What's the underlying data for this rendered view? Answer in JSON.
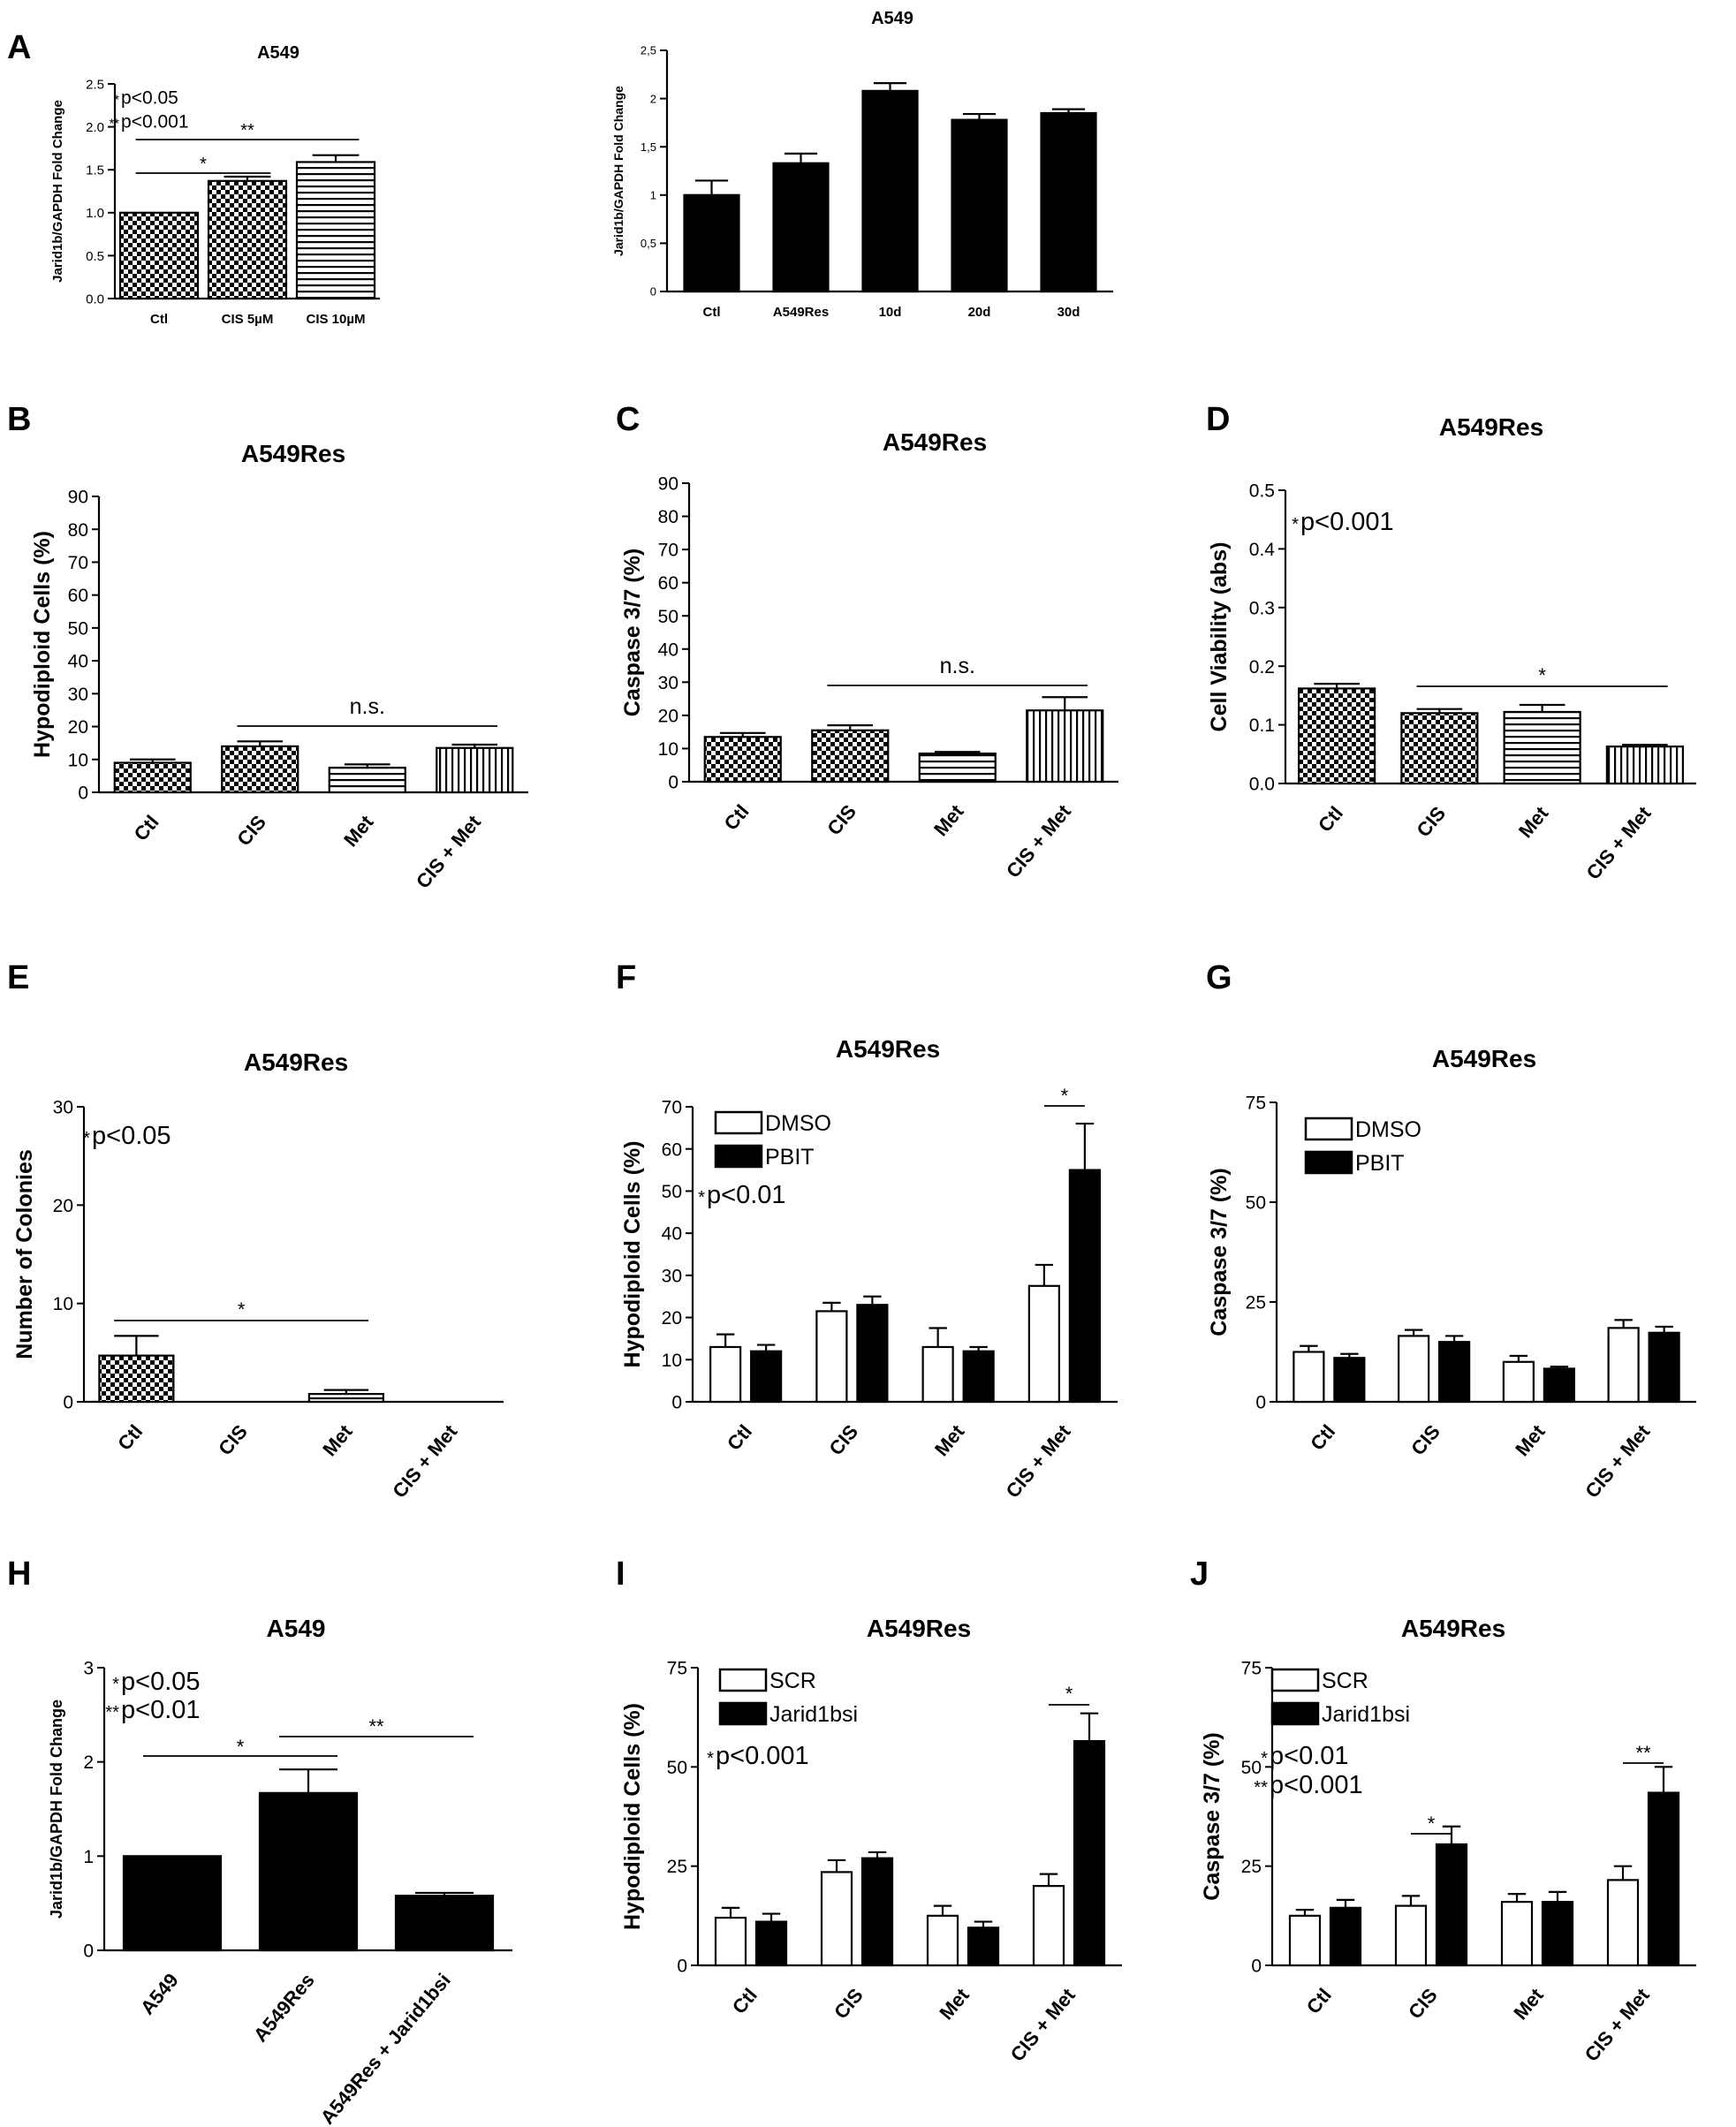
{
  "colors": {
    "ink": "#000000",
    "paper": "#ffffff"
  },
  "chart_data": [
    {
      "panel": "A",
      "title": "A549",
      "type": "bar",
      "ylabel": "Jarid1b/GAPDH Fold Change",
      "categories": [
        "Ctl",
        "CIS 5µM",
        "CIS 10µM"
      ],
      "yticks": [
        "0.0",
        "0.5",
        "1.0",
        "1.5",
        "2.0",
        "2.5"
      ],
      "ylim": [
        0,
        2.5
      ],
      "series": [
        {
          "values": [
            1.0,
            1.37,
            1.59
          ],
          "errors": [
            0,
            0.05,
            0.08
          ],
          "patterns": [
            "check",
            "check",
            "hstripe"
          ]
        }
      ],
      "notes": [
        "p<0.05",
        "p<0.001"
      ],
      "note_marks": [
        "*",
        "**"
      ],
      "sig": [
        {
          "from": 0,
          "to": 1,
          "label": "*"
        },
        {
          "from": 0,
          "to": 2,
          "label": "**"
        }
      ]
    },
    {
      "panel": "",
      "title": "A549",
      "type": "bar",
      "ylabel": "Jarid1b/GAPDH Fold Change",
      "categories": [
        "Ctl",
        "A549Res",
        "10d",
        "20d",
        "30d"
      ],
      "yticks": [
        "0",
        "0,5",
        "1",
        "1,5",
        "2",
        "2,5"
      ],
      "ylim": [
        0,
        2.5
      ],
      "series": [
        {
          "values": [
            1.0,
            1.33,
            2.08,
            1.78,
            1.85
          ],
          "errors": [
            0.15,
            0.1,
            0.08,
            0.06,
            0.04
          ],
          "patterns": [
            "black",
            "black",
            "black",
            "black",
            "black"
          ]
        }
      ]
    },
    {
      "panel": "B",
      "title": "A549Res",
      "type": "bar",
      "ylabel": "Hypodiploid Cells (%)",
      "categories": [
        "Ctl",
        "CIS",
        "Met",
        "CIS + Met"
      ],
      "yticks": [
        "0",
        "10",
        "20",
        "30",
        "40",
        "50",
        "60",
        "70",
        "80",
        "90"
      ],
      "ylim": [
        0,
        90
      ],
      "series": [
        {
          "values": [
            9,
            14,
            7.5,
            13.5
          ],
          "errors": [
            1,
            1.5,
            1,
            1
          ],
          "patterns": [
            "check",
            "check",
            "hstripe",
            "vstripe"
          ]
        }
      ],
      "sig": [
        {
          "from": 1,
          "to": 3,
          "label": "n.s."
        }
      ]
    },
    {
      "panel": "C",
      "title": "A549Res",
      "type": "bar",
      "ylabel": "Caspase 3/7 (%)",
      "categories": [
        "Ctl",
        "CIS",
        "Met",
        "CIS + Met"
      ],
      "yticks": [
        "0",
        "10",
        "20",
        "30",
        "40",
        "50",
        "60",
        "70",
        "80",
        "90"
      ],
      "ylim": [
        0,
        90
      ],
      "series": [
        {
          "values": [
            13.5,
            15.5,
            8.5,
            21.5
          ],
          "errors": [
            1.2,
            1.5,
            0.5,
            4
          ],
          "patterns": [
            "check",
            "check",
            "hstripe",
            "vstripe"
          ]
        }
      ],
      "sig": [
        {
          "from": 1,
          "to": 3,
          "label": "n.s."
        }
      ]
    },
    {
      "panel": "D",
      "title": "A549Res",
      "type": "bar",
      "ylabel": "Cell Viability (abs)",
      "categories": [
        "Ctl",
        "CIS",
        "Met",
        "CIS + Met"
      ],
      "yticks": [
        "0.0",
        "0.1",
        "0.2",
        "0.3",
        "0.4",
        "0.5"
      ],
      "ylim": [
        0,
        0.5
      ],
      "series": [
        {
          "values": [
            0.162,
            0.12,
            0.122,
            0.063
          ],
          "errors": [
            0.008,
            0.007,
            0.012,
            0.003
          ],
          "patterns": [
            "check",
            "check",
            "hstripe",
            "vstripe"
          ]
        }
      ],
      "notes": [
        "p<0.001"
      ],
      "note_marks": [
        "*"
      ],
      "sig": [
        {
          "from": 1,
          "to": 3,
          "label": "*"
        }
      ]
    },
    {
      "panel": "E",
      "title": "A549Res",
      "type": "bar",
      "ylabel": "Number of Colonies",
      "categories": [
        "Ctl",
        "CIS",
        "Met",
        "CIS + Met"
      ],
      "yticks": [
        "0",
        "10",
        "20",
        "30"
      ],
      "ylim": [
        0,
        30
      ],
      "series": [
        {
          "values": [
            4.7,
            0,
            0.8,
            0
          ],
          "errors": [
            2,
            0,
            0.4,
            0
          ],
          "patterns": [
            "check",
            "check",
            "hstripe",
            "vstripe"
          ]
        }
      ],
      "notes": [
        "p<0.05"
      ],
      "note_marks": [
        "*"
      ],
      "sig": [
        {
          "from": 0,
          "to": 2,
          "label": "*"
        }
      ]
    },
    {
      "panel": "F",
      "title": "A549Res",
      "type": "bar",
      "ylabel": "Hypodiploid Cells (%)",
      "categories": [
        "Ctl",
        "CIS",
        "Met",
        "CIS + Met"
      ],
      "yticks": [
        "0",
        "10",
        "20",
        "30",
        "40",
        "50",
        "60",
        "70"
      ],
      "ylim": [
        0,
        70
      ],
      "legend": [
        "DMSO",
        "PBIT"
      ],
      "series": [
        {
          "name": "DMSO",
          "values": [
            13,
            21.5,
            13,
            27.5
          ],
          "errors": [
            3,
            2,
            4.5,
            5
          ]
        },
        {
          "name": "PBIT",
          "values": [
            12,
            23,
            12,
            55
          ],
          "errors": [
            1.5,
            2,
            1,
            11
          ]
        }
      ],
      "notes": [
        "p<0.01"
      ],
      "note_marks": [
        "*"
      ],
      "sig": [
        {
          "group": 3,
          "label": "*"
        }
      ]
    },
    {
      "panel": "G",
      "title": "A549Res",
      "type": "bar",
      "ylabel": "Caspase 3/7 (%)",
      "categories": [
        "Ctl",
        "CIS",
        "Met",
        "CIS + Met"
      ],
      "yticks": [
        "0",
        "25",
        "50",
        "75"
      ],
      "ylim": [
        0,
        75
      ],
      "legend": [
        "DMSO",
        "PBIT"
      ],
      "series": [
        {
          "name": "DMSO",
          "values": [
            12.5,
            16.5,
            10,
            18.5
          ],
          "errors": [
            1.5,
            1.5,
            1.5,
            2
          ]
        },
        {
          "name": "PBIT",
          "values": [
            11,
            15,
            8.3,
            17.3
          ],
          "errors": [
            1,
            1.5,
            0.5,
            1.5
          ]
        }
      ]
    },
    {
      "panel": "H",
      "title": "A549",
      "type": "bar",
      "ylabel": "Jarid1b/GAPDH Fold Change",
      "categories": [
        "A549",
        "A549Res",
        "A549Res + Jarid1bsi"
      ],
      "yticks": [
        "0",
        "1",
        "2",
        "3"
      ],
      "ylim": [
        0,
        3
      ],
      "series": [
        {
          "values": [
            1.0,
            1.67,
            0.58
          ],
          "errors": [
            0,
            0.25,
            0.03
          ],
          "patterns": [
            "black",
            "black",
            "black"
          ]
        }
      ],
      "notes": [
        "p<0.05",
        "p<0.01"
      ],
      "note_marks": [
        "*",
        "**"
      ],
      "sig": [
        {
          "from": 0,
          "to": 1,
          "label": "*"
        },
        {
          "from": 1,
          "to": 2,
          "label": "**"
        }
      ]
    },
    {
      "panel": "I",
      "title": "A549Res",
      "type": "bar",
      "ylabel": "Hypodiploid Cells (%)",
      "categories": [
        "Ctl",
        "CIS",
        "Met",
        "CIS + Met"
      ],
      "yticks": [
        "0",
        "25",
        "50",
        "75"
      ],
      "ylim": [
        0,
        75
      ],
      "legend": [
        "SCR",
        "Jarid1bsi"
      ],
      "series": [
        {
          "name": "SCR",
          "values": [
            12,
            23.5,
            12.5,
            20
          ],
          "errors": [
            2.5,
            3,
            2.5,
            3
          ]
        },
        {
          "name": "Jarid1bsi",
          "values": [
            11,
            27,
            9.5,
            56.5
          ],
          "errors": [
            2,
            1.5,
            1.5,
            7
          ]
        }
      ],
      "notes": [
        "p<0.001"
      ],
      "note_marks": [
        "*"
      ],
      "sig": [
        {
          "group": 3,
          "label": "*"
        }
      ]
    },
    {
      "panel": "J",
      "title": "A549Res",
      "type": "bar",
      "ylabel": "Caspase 3/7 (%)",
      "categories": [
        "Ctl",
        "CIS",
        "Met",
        "CIS + Met"
      ],
      "yticks": [
        "0",
        "25",
        "50",
        "75"
      ],
      "ylim": [
        0,
        75
      ],
      "legend": [
        "SCR",
        "Jarid1bsi"
      ],
      "series": [
        {
          "name": "SCR",
          "values": [
            12.5,
            15,
            16,
            21.5
          ],
          "errors": [
            1.5,
            2.5,
            2,
            3.5
          ]
        },
        {
          "name": "Jarid1bsi",
          "values": [
            14.5,
            30.5,
            16,
            43.5
          ],
          "errors": [
            2,
            4.5,
            2.5,
            6.5
          ]
        }
      ],
      "notes": [
        "p<0.01",
        "p<0.001"
      ],
      "note_marks": [
        "*",
        "**"
      ],
      "sig": [
        {
          "group": 1,
          "label": "*"
        },
        {
          "group": 3,
          "label": "**"
        }
      ]
    }
  ]
}
